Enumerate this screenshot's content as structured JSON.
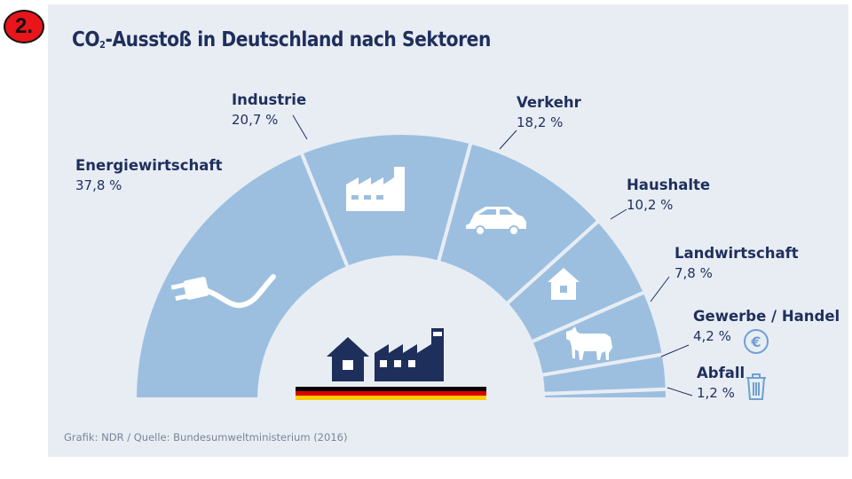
{
  "badge": {
    "label": "2."
  },
  "chart_data": {
    "type": "pie",
    "subtype": "half-donut",
    "title_parts": {
      "prefix": "CO",
      "sub": "2",
      "suffix": "-Ausstoß in Deutschland nach Sektoren"
    },
    "categories": [
      "Energiewirtschaft",
      "Industrie",
      "Verkehr",
      "Haushalte",
      "Landwirtschaft",
      "Gewerbe / Handel",
      "Abfall"
    ],
    "values": [
      37.8,
      20.7,
      18.2,
      10.2,
      7.8,
      4.2,
      1.2
    ],
    "value_labels": [
      "37,8 %",
      "20,7 %",
      "18,2 %",
      "10,2 %",
      "7,8 %",
      "4,2 %",
      "1,2 %"
    ],
    "unit": "%",
    "icons": [
      "plug-icon",
      "factory-icon",
      "car-icon",
      "house-icon",
      "cow-icon",
      "euro-icon",
      "trash-icon"
    ],
    "source": "Grafik: NDR / Quelle: Bundesumweltministerium (2016)"
  },
  "colors": {
    "segment": "#9cbfe0",
    "separator": "#e8edf4",
    "text": "#1f2f5c",
    "icon_white": "#ffffff",
    "center_icons": "#1f2f5c",
    "flag": [
      "#000000",
      "#dd0000",
      "#ffce00"
    ]
  }
}
